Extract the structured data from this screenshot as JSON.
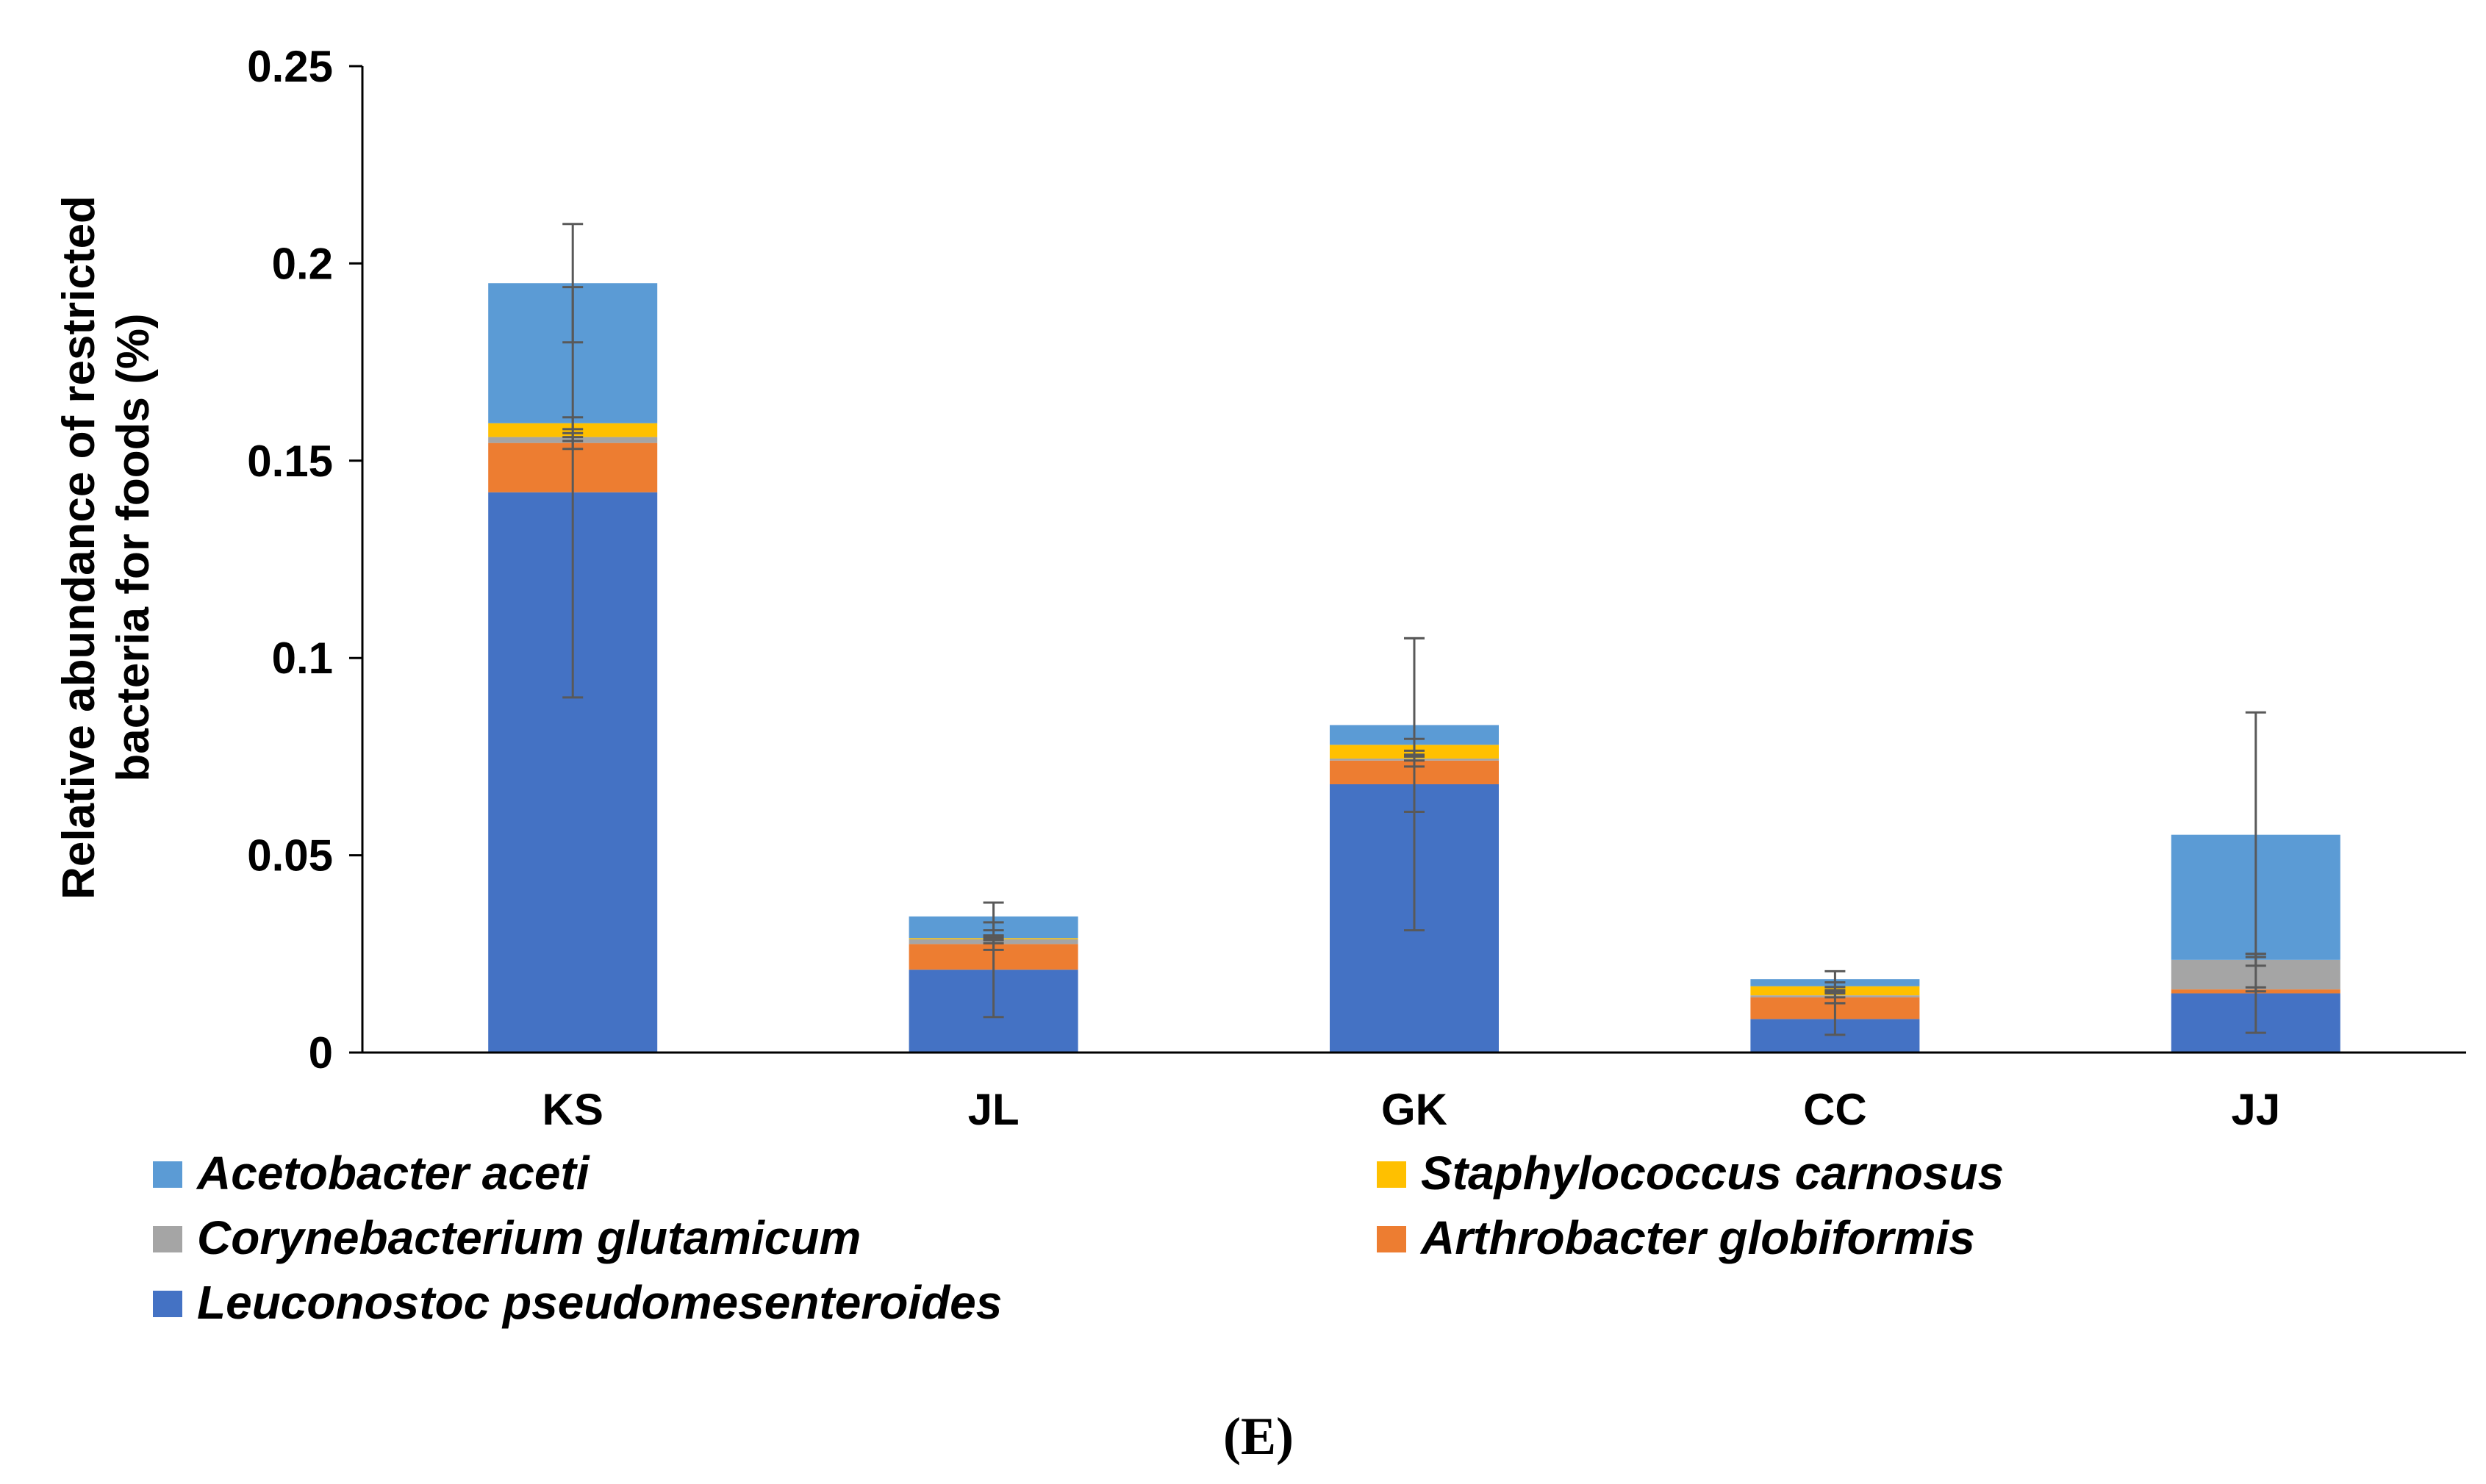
{
  "chart_data": {
    "type": "bar",
    "stacked": true,
    "ylabel_line1": "Relative abundance of restricted",
    "ylabel_line2": "bacteria for foods (%)",
    "xlabel": "",
    "ylim": [
      0,
      0.25
    ],
    "yticks": [
      {
        "value": 0,
        "label": "0"
      },
      {
        "value": 0.05,
        "label": "0.05"
      },
      {
        "value": 0.1,
        "label": "0.1"
      },
      {
        "value": 0.15,
        "label": "0.15"
      },
      {
        "value": 0.2,
        "label": "0.2"
      },
      {
        "value": 0.25,
        "label": "0.25"
      }
    ],
    "categories": [
      "KS",
      "JL",
      "GK",
      "CC",
      "JJ"
    ],
    "series": [
      {
        "name": "Leuconostoc pseudomesenteroides",
        "color": "#4472c4",
        "values": [
          0.142,
          0.021,
          0.068,
          0.0085,
          0.015
        ],
        "errors": [
          0.052,
          0.012,
          0.037,
          0.004,
          0.01
        ]
      },
      {
        "name": "Arthrobacter globiformis",
        "color": "#ed7d31",
        "values": [
          0.0125,
          0.0065,
          0.006,
          0.0055,
          0.001
        ],
        "errors": [
          0.0015,
          0.0015,
          0.0015,
          0.0015,
          0.0005
        ]
      },
      {
        "name": "Corynebacterium glutamicum",
        "color": "#a5a5a5",
        "values": [
          0.0015,
          0.0012,
          0.0005,
          0.0005,
          0.0075
        ],
        "errors": [
          0.001,
          0.001,
          0.0005,
          0.0005,
          0.0015
        ]
      },
      {
        "name": "Staphylococcus carnosus",
        "color": "#ffc000",
        "values": [
          0.0035,
          0.0003,
          0.0035,
          0.0023,
          0.0
        ],
        "errors": [
          0.0015,
          0.0005,
          0.0015,
          0.001,
          0.0
        ]
      },
      {
        "name": "Acetobacter aceti",
        "color": "#5b9bd5",
        "values": [
          0.0355,
          0.0055,
          0.005,
          0.0018,
          0.0317
        ],
        "errors": [
          0.015,
          0.0035,
          0.022,
          0.002,
          0.031
        ]
      }
    ],
    "legend": [
      {
        "name": "Acetobacter aceti",
        "color": "#5b9bd5"
      },
      {
        "name": "Staphylococcus carnosus",
        "color": "#ffc000"
      },
      {
        "name": "Corynebacterium glutamicum",
        "color": "#a5a5a5"
      },
      {
        "name": "Arthrobacter globiformis",
        "color": "#ed7d31"
      },
      {
        "name": "Leuconostoc pseudomesenteroides",
        "color": "#4472c4"
      }
    ],
    "legend_position": "bottom",
    "grid": false
  },
  "panel_label": "(E)"
}
